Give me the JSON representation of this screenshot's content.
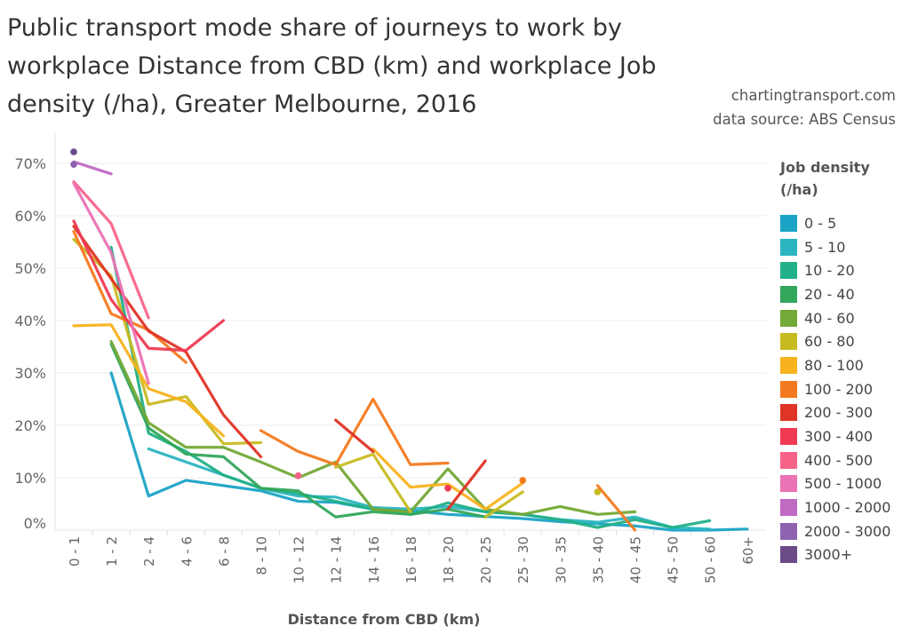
{
  "chart_data": {
    "type": "line",
    "title": "Public transport mode share of journeys to work by workplace Distance from CBD (km) and workplace Job density (/ha), Greater Melbourne, 2016",
    "title_lines": [
      "Public transport mode share of journeys to work by",
      "workplace Distance from CBD (km) and workplace Job",
      "density (/ha), Greater Melbourne, 2016"
    ],
    "source_lines": [
      "chartingtransport.com",
      "data source: ABS Census"
    ],
    "xlabel": "Distance from CBD (km)",
    "ylabel": "",
    "categories": [
      "0 - 1",
      "1 - 2",
      "2 - 4",
      "4 - 6",
      "6 - 8",
      "8 - 10",
      "10 - 12",
      "12 - 14",
      "14 - 16",
      "16 - 18",
      "18 - 20",
      "20 - 25",
      "25 - 30",
      "30 - 35",
      "35 - 40",
      "40 - 45",
      "45 - 50",
      "50 - 60",
      "60+"
    ],
    "y_ticks": [
      0,
      10,
      20,
      30,
      40,
      50,
      60,
      70
    ],
    "y_tick_labels": [
      "0%",
      "10%",
      "20%",
      "30%",
      "40%",
      "50%",
      "60%",
      "70%"
    ],
    "ylim": [
      0,
      75
    ],
    "grid": true,
    "legend_title_lines": [
      "Job density",
      "(/ha)"
    ],
    "legend_position": "right",
    "series": [
      {
        "name": "0 - 5",
        "color": "#1ba3c6",
        "values": [
          null,
          30,
          6.5,
          9.5,
          8.5,
          7.5,
          5.5,
          5.3,
          4,
          3.7,
          3,
          2.6,
          2.2,
          1.6,
          1.2,
          0.8,
          0,
          0,
          0.2
        ]
      },
      {
        "name": "5 - 10",
        "color": "#2cb5c0",
        "values": [
          null,
          null,
          15.5,
          13,
          10.5,
          8,
          6.5,
          6.3,
          4.3,
          4,
          4.5,
          3.5,
          3,
          2,
          1.5,
          2.5,
          0.5,
          0.2,
          null
        ]
      },
      {
        "name": "10 - 20",
        "color": "#21b087",
        "values": [
          null,
          54,
          18.5,
          15,
          10.5,
          8,
          7,
          5.5,
          4,
          3,
          5.2,
          3.5,
          3,
          2,
          0.5,
          2,
          0.5,
          1.8,
          null
        ]
      },
      {
        "name": "20 - 40",
        "color": "#33a65c",
        "values": [
          null,
          35.5,
          19.5,
          14.5,
          14,
          8,
          7.5,
          2.5,
          3.5,
          3,
          4,
          2.5,
          null,
          null,
          null,
          null,
          null,
          null,
          null
        ]
      },
      {
        "name": "40 - 60",
        "color": "#73a936",
        "values": [
          null,
          36,
          20.5,
          15.8,
          15.8,
          13,
          10,
          13,
          4,
          3.5,
          11.7,
          4,
          3,
          4.5,
          3,
          3.5,
          null,
          null,
          null
        ]
      },
      {
        "name": "60 - 80",
        "color": "#c8bb22",
        "values": [
          55.5,
          48.5,
          24,
          25.5,
          16.5,
          16.7,
          null,
          12,
          14.5,
          3.5,
          null,
          2.5,
          7.3,
          null,
          7.3,
          null,
          null,
          null,
          null
        ]
      },
      {
        "name": "80 - 100",
        "color": "#f8b21e",
        "values": [
          39,
          39.2,
          27,
          24.5,
          18,
          null,
          null,
          null,
          15.5,
          8.2,
          8.8,
          4,
          9,
          null,
          null,
          null,
          null,
          null,
          null
        ]
      },
      {
        "name": "100 - 200",
        "color": "#f47a1f",
        "values": [
          57,
          41.3,
          38.2,
          32,
          null,
          19,
          15,
          12.5,
          25,
          12.5,
          12.8,
          null,
          9.5,
          null,
          8.5,
          0,
          null,
          null,
          null
        ]
      },
      {
        "name": "200 - 300",
        "color": "#e03426",
        "values": [
          58,
          48,
          38,
          34,
          22,
          14,
          null,
          21,
          15,
          null,
          4,
          13.2,
          null,
          null,
          null,
          null,
          null,
          null,
          null
        ]
      },
      {
        "name": "300 - 400",
        "color": "#ef3a52",
        "values": [
          59,
          44,
          34.7,
          34.3,
          40,
          null,
          null,
          null,
          null,
          null,
          8,
          null,
          null,
          null,
          null,
          null,
          null,
          null,
          null
        ]
      },
      {
        "name": "400 - 500",
        "color": "#f8638a",
        "values": [
          66.5,
          58.5,
          40.5,
          null,
          null,
          null,
          10.4,
          null,
          null,
          null,
          null,
          null,
          null,
          null,
          null,
          null,
          null,
          null,
          null
        ]
      },
      {
        "name": "500 - 1000",
        "color": "#eb72b5",
        "values": [
          66.2,
          53,
          28,
          null,
          null,
          null,
          null,
          null,
          null,
          null,
          null,
          null,
          null,
          null,
          null,
          null,
          null,
          null,
          null
        ]
      },
      {
        "name": "1000 - 2000",
        "color": "#c06ac4",
        "values": [
          70.3,
          68,
          null,
          null,
          null,
          null,
          null,
          null,
          null,
          null,
          null,
          null,
          null,
          null,
          null,
          null,
          null,
          null,
          null
        ]
      },
      {
        "name": "2000 - 3000",
        "color": "#8e62ae",
        "values": [
          69.8,
          null,
          null,
          null,
          null,
          null,
          null,
          null,
          null,
          null,
          null,
          null,
          null,
          null,
          null,
          null,
          null,
          null,
          null
        ]
      },
      {
        "name": "3000+",
        "color": "#6b4a88",
        "values": [
          72.2,
          null,
          null,
          null,
          null,
          null,
          null,
          null,
          null,
          null,
          null,
          null,
          null,
          null,
          null,
          null,
          null,
          null,
          null
        ]
      }
    ]
  }
}
